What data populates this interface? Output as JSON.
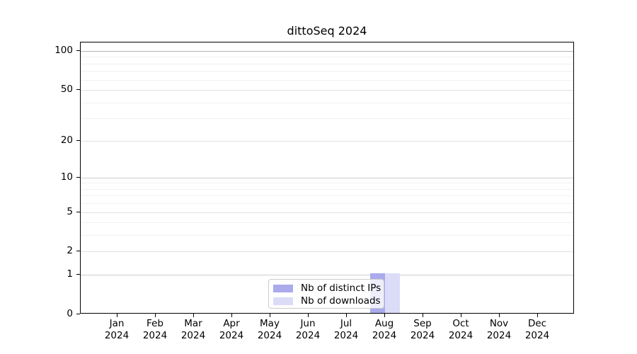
{
  "chart_data": {
    "type": "bar",
    "title": "dittoSeq 2024",
    "categories": [
      "Jan 2024",
      "Feb 2024",
      "Mar 2024",
      "Apr 2024",
      "May 2024",
      "Jun 2024",
      "Jul 2024",
      "Aug 2024",
      "Sep 2024",
      "Oct 2024",
      "Nov 2024",
      "Dec 2024"
    ],
    "series": [
      {
        "name": "Nb of distinct IPs",
        "color": "#aaaaec",
        "values": [
          0,
          0,
          0,
          0,
          0,
          0,
          0,
          1,
          0,
          0,
          0,
          0
        ]
      },
      {
        "name": "Nb of downloads",
        "color": "#dcdcf8",
        "values": [
          0,
          0,
          0,
          0,
          0,
          0,
          0,
          1,
          0,
          0,
          0,
          0
        ]
      }
    ],
    "y_axis": {
      "scale": "log1p",
      "tick_labels": [
        "0",
        "1",
        "2",
        "5",
        "10",
        "20",
        "50",
        "100"
      ],
      "tick_values": [
        0,
        1,
        2,
        5,
        10,
        20,
        50,
        100
      ],
      "minor_gridline_values": [
        3,
        4,
        6,
        7,
        8,
        9,
        30,
        40,
        60,
        70,
        80,
        90
      ],
      "ylim": [
        0,
        116
      ]
    },
    "x_axis": {
      "tick_count": 12
    },
    "legend": {
      "position": "inside-bottom-center",
      "entries": [
        "Nb of distinct IPs",
        "Nb of downloads"
      ]
    },
    "grid": true
  },
  "colors": {
    "background": "#ffffff",
    "axis": "#000000",
    "gridline_major": "#e2e2e2",
    "gridline_minor": "#f1f1f1",
    "gridline_power10": "#cdcdcd",
    "gridline_top": "#b4b4b4",
    "legend_border": "#cccccc",
    "bar_distinct_ips": "#aaaaec",
    "bar_downloads": "#dcdcf8"
  }
}
